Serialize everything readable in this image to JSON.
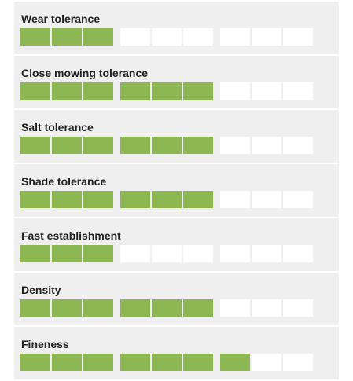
{
  "items": [
    {
      "label": "Wear tolerance",
      "rating": 3
    },
    {
      "label": "Close mowing tolerance",
      "rating": 6
    },
    {
      "label": "Salt tolerance",
      "rating": 6
    },
    {
      "label": "Shade tolerance",
      "rating": 6
    },
    {
      "label": "Fast establishment",
      "rating": 3
    },
    {
      "label": "Density",
      "rating": 6
    },
    {
      "label": "Fineness",
      "rating": 7
    }
  ],
  "scale_max": 9,
  "filled_color": "#8cb752",
  "empty_color": "#ffffff"
}
